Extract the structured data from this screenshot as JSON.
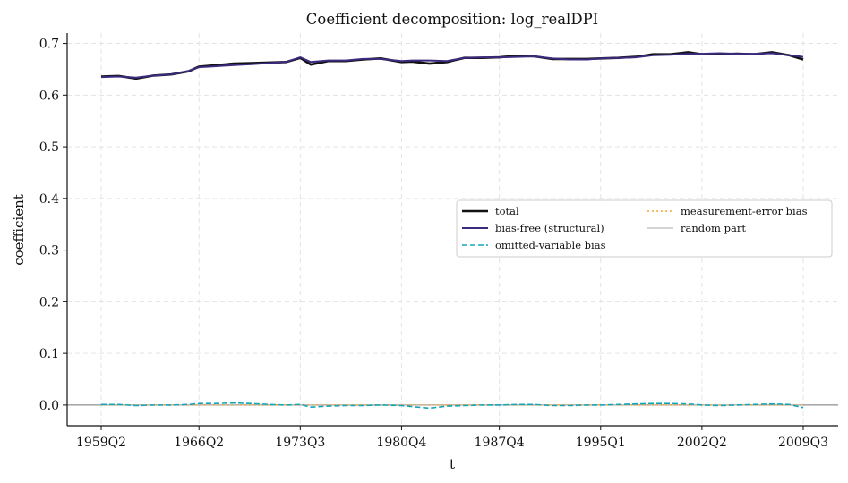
{
  "chart_data": {
    "type": "line",
    "title": "Coefficient decomposition: log_realDPI",
    "xlabel": "t",
    "ylabel": "coefficient",
    "ylim": [
      -0.04,
      0.72
    ],
    "yticks": [
      0.0,
      0.1,
      0.2,
      0.3,
      0.4,
      0.5,
      0.6,
      0.7
    ],
    "ytick_labels": [
      "0.0",
      "0.1",
      "0.2",
      "0.3",
      "0.4",
      "0.5",
      "0.6",
      "0.7"
    ],
    "x_range": [
      "1959Q2",
      "2009Q3"
    ],
    "xticks": [
      "1959Q2",
      "1966Q2",
      "1973Q3",
      "1980Q4",
      "1987Q4",
      "1995Q1",
      "2002Q2",
      "2009Q3"
    ],
    "grid": true,
    "zero_line": true,
    "legend_position": "center-right",
    "legend_columns": 2,
    "x": [
      "1959Q2",
      "1960Q3",
      "1961Q4",
      "1963Q1",
      "1964Q2",
      "1965Q3",
      "1966Q2",
      "1967Q3",
      "1968Q4",
      "1970Q1",
      "1971Q2",
      "1972Q3",
      "1973Q3",
      "1974Q2",
      "1975Q3",
      "1976Q4",
      "1978Q1",
      "1979Q2",
      "1980Q4",
      "1981Q3",
      "1982Q4",
      "1984Q1",
      "1985Q2",
      "1986Q3",
      "1987Q4",
      "1989Q1",
      "1990Q2",
      "1991Q3",
      "1992Q4",
      "1994Q1",
      "1995Q1",
      "1996Q2",
      "1997Q3",
      "1998Q4",
      "2000Q1",
      "2001Q2",
      "2002Q2",
      "2003Q3",
      "2004Q4",
      "2006Q1",
      "2007Q2",
      "2008Q3",
      "2009Q3"
    ],
    "series": [
      {
        "name": "total",
        "color": "#111111",
        "style": "solid",
        "values": [
          0.636,
          0.637,
          0.632,
          0.638,
          0.64,
          0.646,
          0.655,
          0.658,
          0.661,
          0.662,
          0.663,
          0.664,
          0.672,
          0.659,
          0.666,
          0.666,
          0.669,
          0.671,
          0.664,
          0.665,
          0.661,
          0.664,
          0.672,
          0.672,
          0.673,
          0.676,
          0.675,
          0.67,
          0.67,
          0.67,
          0.671,
          0.672,
          0.674,
          0.679,
          0.679,
          0.683,
          0.679,
          0.679,
          0.68,
          0.679,
          0.683,
          0.677,
          0.669
        ]
      },
      {
        "name": "bias-free (structural)",
        "color": "#3b2a7e",
        "style": "solid",
        "values": [
          0.635,
          0.636,
          0.634,
          0.638,
          0.64,
          0.647,
          0.654,
          0.656,
          0.658,
          0.66,
          0.662,
          0.664,
          0.673,
          0.664,
          0.667,
          0.667,
          0.67,
          0.67,
          0.666,
          0.667,
          0.667,
          0.666,
          0.672,
          0.673,
          0.673,
          0.674,
          0.675,
          0.671,
          0.669,
          0.669,
          0.671,
          0.672,
          0.673,
          0.677,
          0.678,
          0.68,
          0.68,
          0.681,
          0.68,
          0.68,
          0.681,
          0.677,
          0.674
        ]
      },
      {
        "name": "omitted-variable bias",
        "color": "#13a6b8",
        "style": "dashed",
        "values": [
          0.001,
          0.001,
          -0.001,
          0.0,
          0.0,
          0.001,
          0.003,
          0.003,
          0.004,
          0.003,
          0.001,
          0.0,
          0.001,
          -0.004,
          -0.002,
          -0.001,
          -0.001,
          0.0,
          -0.001,
          -0.003,
          -0.006,
          -0.002,
          -0.001,
          0.0,
          0.0,
          0.001,
          0.001,
          -0.001,
          -0.001,
          0.0,
          0.0,
          0.001,
          0.002,
          0.003,
          0.003,
          0.002,
          0.0,
          -0.001,
          0.0,
          0.001,
          0.002,
          0.001,
          -0.005
        ]
      },
      {
        "name": "measurement-error bias",
        "color": "#f5a23a",
        "style": "dotted",
        "values": [
          0.0,
          0.0,
          0.0,
          0.0,
          0.0,
          0.0,
          0.0,
          0.0,
          0.0,
          0.0,
          0.0,
          0.0,
          0.0,
          0.0,
          0.0,
          0.0,
          0.0,
          0.0,
          0.0,
          0.0,
          0.0,
          0.0,
          0.0,
          0.0,
          0.0,
          0.0,
          0.0,
          0.0,
          0.0,
          0.0,
          0.0,
          0.0,
          0.0,
          0.0,
          0.0,
          0.0,
          0.0,
          0.0,
          0.0,
          0.0,
          0.0,
          0.0,
          0.0
        ]
      },
      {
        "name": "random part",
        "color": "#aaaaaa",
        "style": "thin",
        "values": [
          0.0,
          0.0,
          0.0,
          0.0,
          0.0,
          0.0,
          0.0,
          0.0,
          0.0,
          0.0,
          0.0,
          0.0,
          0.0,
          0.0,
          0.0,
          0.0,
          0.0,
          0.0,
          0.0,
          0.0,
          0.0,
          0.0,
          0.0,
          0.0,
          0.0,
          0.0,
          0.0,
          0.0,
          0.0,
          0.0,
          0.0,
          0.0,
          0.0,
          0.0,
          0.0,
          0.0,
          0.0,
          0.0,
          0.0,
          0.0,
          0.0,
          0.0,
          0.0
        ]
      }
    ]
  }
}
